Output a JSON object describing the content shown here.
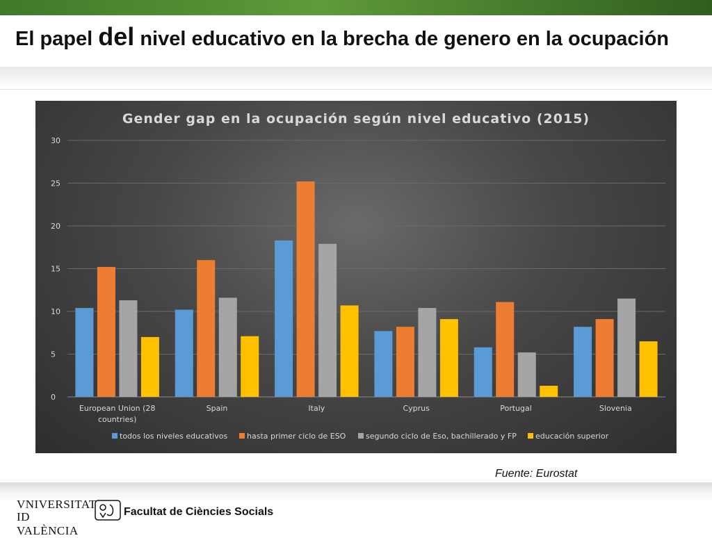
{
  "slide": {
    "title_part1": "El papel ",
    "title_big_word": "del",
    "title_part2": " nivel educativo en la brecha de genero en la ocupación",
    "source": "Fuente: Eurostat"
  },
  "footer": {
    "university_line1": "VNIVERSITAT",
    "university_line2": "ID VALÈNCIA",
    "faculty": "Facultat de Ciències Socials"
  },
  "colors": {
    "series": [
      "#5b9bd5",
      "#ed7d31",
      "#a5a5a5",
      "#ffc000"
    ],
    "grid": "#6a6a6a",
    "text": "#d9d9d9"
  },
  "chart_data": {
    "type": "bar",
    "title": "Gender gap en la ocupación según nivel educativo (2015)",
    "categories": [
      "European Union (28 countries)",
      "Spain",
      "Italy",
      "Cyprus",
      "Portugal",
      "Slovenia"
    ],
    "series": [
      {
        "name": "todos los niveles educativos",
        "values": [
          10.4,
          10.2,
          18.3,
          7.7,
          5.8,
          8.2
        ]
      },
      {
        "name": "hasta primer ciclo de ESO",
        "values": [
          15.2,
          16.0,
          25.2,
          8.2,
          11.1,
          9.1
        ]
      },
      {
        "name": "segundo ciclo de Eso, bachillerado y FP",
        "values": [
          11.3,
          11.6,
          17.9,
          10.4,
          5.2,
          11.5
        ]
      },
      {
        "name": "educación superior",
        "values": [
          7.0,
          7.1,
          10.7,
          9.1,
          1.3,
          6.5
        ]
      }
    ],
    "ylim": [
      0,
      30
    ],
    "yticks": [
      0,
      5,
      10,
      15,
      20,
      25,
      30
    ],
    "grid": true,
    "legend": "bottom"
  }
}
